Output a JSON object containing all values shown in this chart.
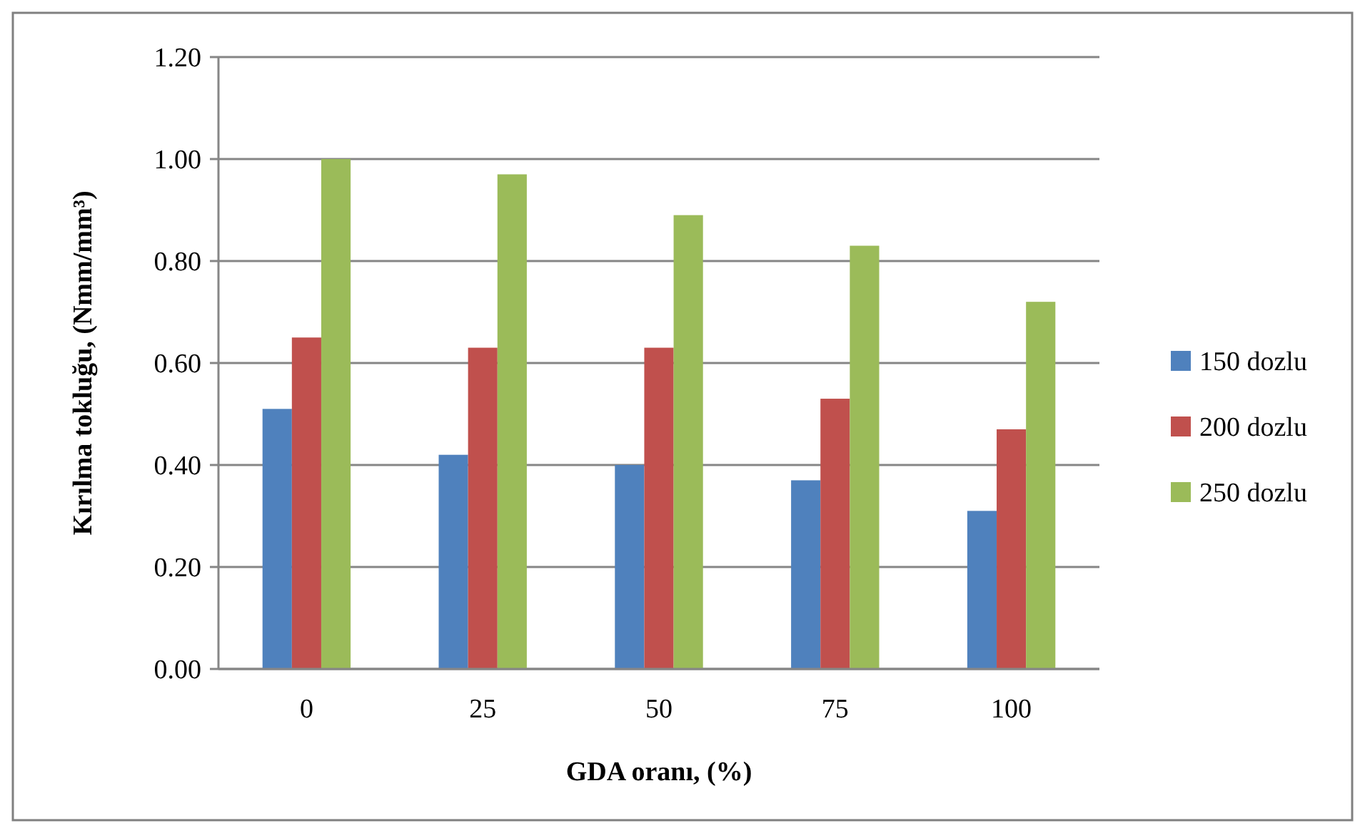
{
  "chart_data": {
    "type": "bar",
    "xlabel": "GDA oranı, (%)",
    "ylabel": "Kırılma tokluğu, (Nmm/mm³)",
    "categories": [
      "0",
      "25",
      "50",
      "75",
      "100"
    ],
    "series": [
      {
        "name": "150 dozlu",
        "color": "#4f81bd",
        "values": [
          0.51,
          0.42,
          0.4,
          0.37,
          0.31
        ]
      },
      {
        "name": "200 dozlu",
        "color": "#c0504d",
        "values": [
          0.65,
          0.63,
          0.63,
          0.53,
          0.47
        ]
      },
      {
        "name": "250 dozlu",
        "color": "#9bbb59",
        "values": [
          1.0,
          0.97,
          0.89,
          0.83,
          0.72
        ]
      }
    ],
    "ylim": [
      0,
      1.2
    ],
    "yticks": [
      {
        "value": 0,
        "label": "0.00"
      },
      {
        "value": 0.2,
        "label": "0.20"
      },
      {
        "value": 0.4,
        "label": "0.40"
      },
      {
        "value": 0.6,
        "label": "0.60"
      },
      {
        "value": 0.8,
        "label": "0.80"
      },
      {
        "value": 1,
        "label": "1.00"
      },
      {
        "value": 1.2,
        "label": "1.20"
      }
    ],
    "grid": "y",
    "legend": "right"
  }
}
